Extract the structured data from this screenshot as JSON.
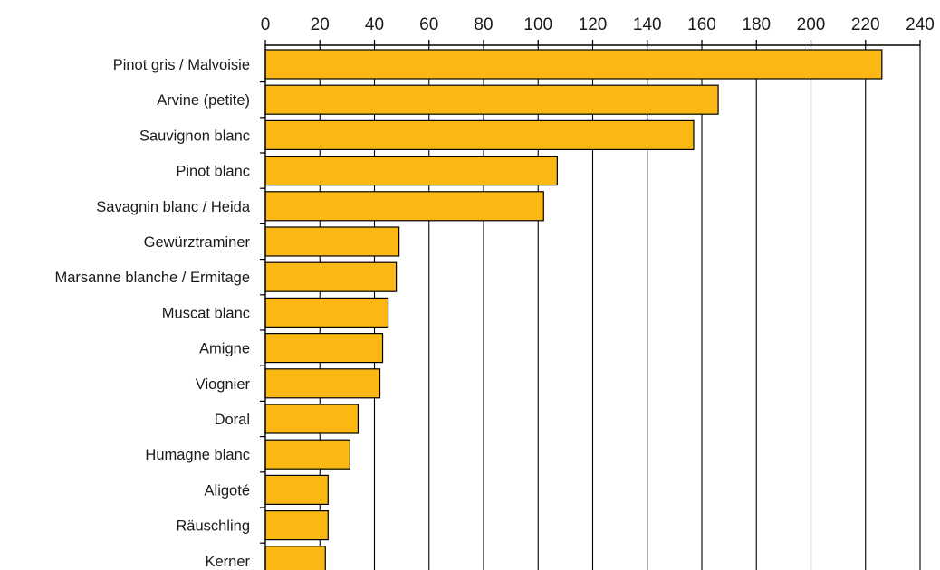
{
  "chart_data": {
    "type": "bar",
    "orientation": "horizontal",
    "categories": [
      "Pinot gris / Malvoisie",
      "Arvine (petite)",
      "Sauvignon blanc",
      "Pinot blanc",
      "Savagnin blanc / Heida",
      "Gewürztraminer",
      "Marsanne blanche / Ermitage",
      "Muscat blanc",
      "Amigne",
      "Viognier",
      "Doral",
      "Humagne blanc",
      "Aligoté",
      "Räuschling",
      "Kerner"
    ],
    "values": [
      226,
      166,
      157,
      107,
      102,
      49,
      48,
      45,
      43,
      42,
      34,
      31,
      23,
      23,
      22
    ],
    "xlim": [
      0,
      240
    ],
    "xticks": [
      0,
      20,
      40,
      60,
      80,
      100,
      120,
      140,
      160,
      180,
      200,
      220,
      240
    ],
    "axis_position": "top",
    "grid": "vertical",
    "legend": "none",
    "bar_color": "#fbb814",
    "bar_edge_color": "#000000"
  }
}
